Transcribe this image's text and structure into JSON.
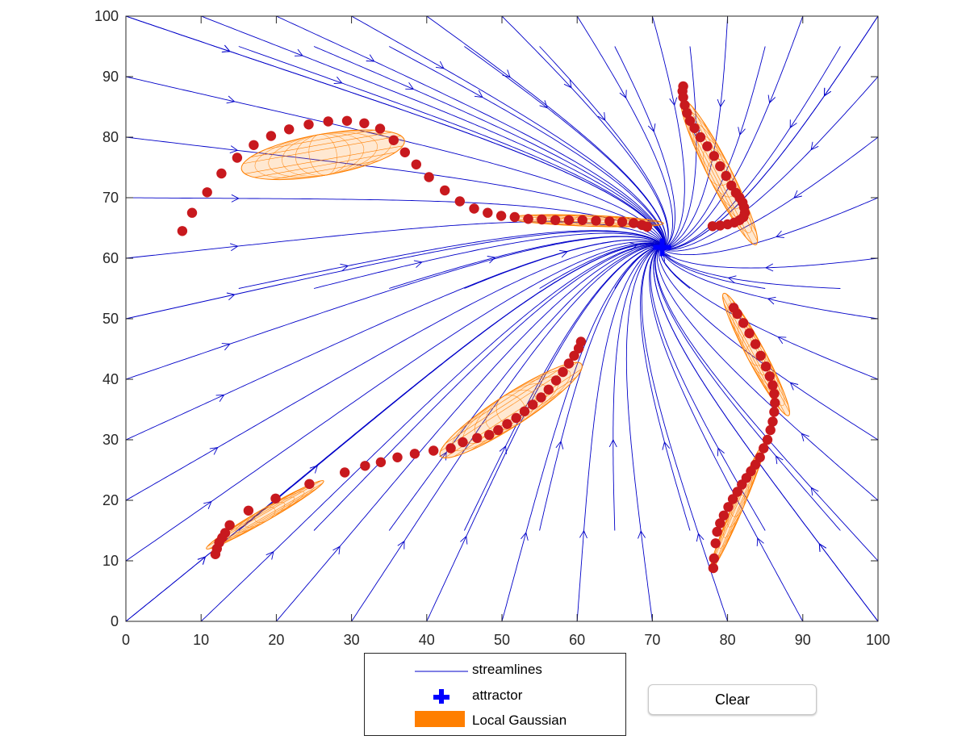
{
  "legend": {
    "streamlines": "streamlines",
    "attractor": "attractor",
    "local_gaussian": "Local Gaussian"
  },
  "clear_button": {
    "label": "Clear"
  },
  "colors": {
    "streamline": "#0000c8",
    "attractor": "#0000ff",
    "points": "#c8191e",
    "gaussian": "#ff7f00"
  },
  "chart_data": {
    "type": "scatter",
    "title": "",
    "xlabel": "",
    "ylabel": "",
    "xlim": [
      0,
      100
    ],
    "ylim": [
      0,
      100
    ],
    "xticks": [
      0,
      10,
      20,
      30,
      40,
      50,
      60,
      70,
      80,
      90,
      100
    ],
    "yticks": [
      0,
      10,
      20,
      30,
      40,
      50,
      60,
      70,
      80,
      90,
      100
    ],
    "attractor": {
      "x": 71.3,
      "y": 61.8
    },
    "series": [
      {
        "x": [
          7.5,
          8.8,
          10.8,
          12.7,
          14.8,
          17,
          19.3,
          21.7,
          24.3,
          26.9,
          29.4,
          31.7,
          33.8,
          35.6,
          37.1,
          38.6,
          40.3,
          42.4,
          44.4,
          46.3,
          48.1,
          49.9,
          51.7,
          53.5,
          55.3,
          57.1,
          58.9,
          60.7,
          62.5,
          64.3,
          66,
          67.5,
          68.6,
          69.3
        ],
        "y": [
          64.5,
          67.5,
          70.9,
          74,
          76.6,
          78.7,
          80.2,
          81.3,
          82.1,
          82.6,
          82.7,
          82.3,
          81.4,
          79.5,
          77.5,
          75.5,
          73.4,
          71.2,
          69.4,
          68.2,
          67.5,
          67,
          66.8,
          66.5,
          66.4,
          66.3,
          66.3,
          66.3,
          66.2,
          66.1,
          66,
          65.8,
          65.5,
          65.2
        ]
      },
      {
        "x": [
          74.1,
          74,
          74.1,
          74.3,
          74.6,
          75,
          75.6,
          76.4,
          77.3,
          78.2,
          79,
          79.8,
          80.5,
          81.1,
          81.6,
          82,
          82.2,
          82.3,
          82.1,
          81.6,
          80.9,
          80,
          79,
          78
        ],
        "y": [
          88.4,
          87.6,
          86.6,
          85.3,
          84,
          82.7,
          81.5,
          80,
          78.5,
          76.9,
          75.2,
          73.6,
          72,
          70.8,
          70,
          69.2,
          68.4,
          67.5,
          66.8,
          66.3,
          65.9,
          65.6,
          65.4,
          65.3
        ]
      },
      {
        "x": [
          80.8,
          81.3,
          82.1,
          82.9,
          83.7,
          84.4,
          85.1,
          85.6,
          86,
          86.2,
          86.3,
          86.2,
          86,
          85.7,
          85.3,
          84.8,
          84.3,
          83.7,
          83.1,
          82.5,
          81.9,
          81.3,
          80.7,
          80.1,
          79.5,
          79,
          78.6,
          78.4,
          78.2,
          78.1
        ],
        "y": [
          51.8,
          50.8,
          49.3,
          47.6,
          45.8,
          43.9,
          42.1,
          40.5,
          39,
          37.6,
          36.1,
          34.6,
          33,
          31.6,
          30,
          28.6,
          27.1,
          25.9,
          24.8,
          23.7,
          22.6,
          21.4,
          20.2,
          18.9,
          17.5,
          16.2,
          14.8,
          12.9,
          10.4,
          8.8
        ]
      },
      {
        "x": [
          60.5,
          60.2,
          59.6,
          58.9,
          58.1,
          57.2,
          56.2,
          55.2,
          54.1,
          53,
          51.9,
          50.7,
          49.5,
          48.3,
          46.7,
          44.8,
          43.2,
          40.9,
          38.4,
          36.1,
          33.9,
          31.8,
          29.1,
          24.4,
          19.9,
          16.3,
          13.8,
          13.2,
          12.8,
          12.4,
          12.1,
          11.9
        ],
        "y": [
          46.2,
          45.1,
          43.9,
          42.6,
          41.2,
          39.8,
          38.3,
          37,
          35.8,
          34.7,
          33.6,
          32.6,
          31.6,
          30.8,
          30.3,
          29.6,
          28.6,
          28.2,
          27.7,
          27.1,
          26.3,
          25.7,
          24.6,
          22.7,
          20.3,
          18.3,
          15.9,
          14.6,
          13.8,
          13,
          12,
          11.1
        ]
      }
    ],
    "local_gaussians": [
      {
        "cx": 26.2,
        "cy": 77.1,
        "rx_deg": 11,
        "ry_deg": 3.4,
        "angle_deg": 10
      },
      {
        "cx": 61.3,
        "cy": 66.2,
        "rx_deg": 10.2,
        "ry_deg": 0.9,
        "angle_deg": -2
      },
      {
        "cx": 78.9,
        "cy": 74.2,
        "rx_deg": 10.8,
        "ry_deg": 1.9,
        "angle_deg": -63
      },
      {
        "cx": 83.8,
        "cy": 44.1,
        "rx_deg": 9.2,
        "ry_deg": 1.5,
        "angle_deg": -62
      },
      {
        "cx": 81.4,
        "cy": 19.1,
        "rx_deg": 9.2,
        "ry_deg": 0.9,
        "angle_deg": 67
      },
      {
        "cx": 51.2,
        "cy": 34.9,
        "rx_deg": 11.2,
        "ry_deg": 2.6,
        "angle_deg": 33
      },
      {
        "cx": 18.5,
        "cy": 17.6,
        "rx_deg": 9,
        "ry_deg": 1,
        "angle_deg": 30
      }
    ]
  }
}
